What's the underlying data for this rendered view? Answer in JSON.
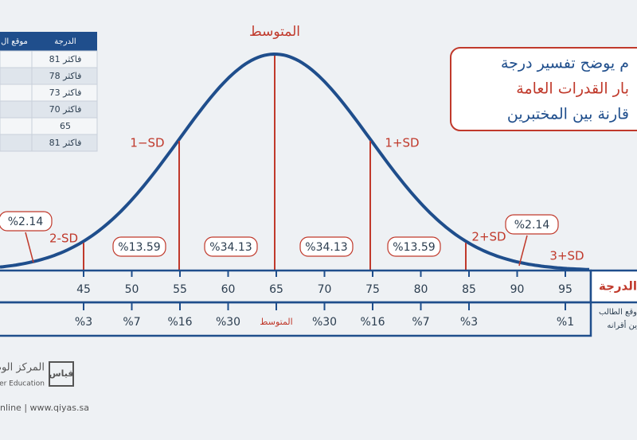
{
  "title_box": {
    "lines": [
      "م يوضح تفسير درجة",
      "بار القدرات العامة",
      "قارنة بين المختبرين"
    ]
  },
  "curve_labels": {
    "mean": "المتوسط",
    "minus_1sd": "1−SD",
    "plus_1sd": "1+SD",
    "minus_2sd": "2-SD",
    "plus_2sd": "2+SD",
    "plus_3sd": "3+SD"
  },
  "percent_boxes": [
    "%2.14",
    "%13.59",
    "%34.13",
    "%34.13",
    "%13.59",
    "%2.14"
  ],
  "score_row": {
    "label": "الدرجة",
    "scores": [
      45,
      50,
      55,
      60,
      65,
      70,
      75,
      80,
      85,
      90,
      95
    ]
  },
  "rank_row": {
    "label_lines": [
      "وقع الطالب",
      "ين أقرانه"
    ],
    "ranks": [
      "%3",
      "%7",
      "%16",
      "%30",
      "المتوسط",
      "%30",
      "%16",
      "%7",
      "%3",
      "%1"
    ]
  },
  "table": {
    "headers": [
      "الدرجة",
      "موقع ال"
    ],
    "rows": [
      "81 فاكثر",
      "78 فاكثر",
      "73 فاكثر",
      "70 فاكثر",
      "65",
      "81 فاكثر"
    ]
  },
  "footer": {
    "org": "المركز الوطني",
    "org_en": "gher Education",
    "brand": "قياس",
    "web": "nline | www.qiyas.sa"
  }
}
